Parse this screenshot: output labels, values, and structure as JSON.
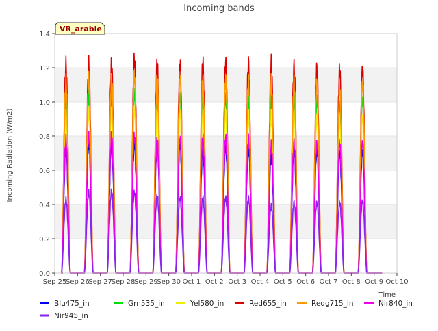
{
  "chart_data": {
    "type": "line",
    "title": "Incoming bands",
    "xlabel": "Time",
    "ylabel": "Incoming Radiation (W/m2)",
    "badge": "VR_arable",
    "ylim": [
      0,
      1.4
    ],
    "yticks": [
      0.0,
      0.2,
      0.4,
      0.6,
      0.8,
      1.0,
      1.2,
      1.4
    ],
    "ytick_labels": [
      "0.0",
      "0.2",
      "0.4",
      "0.6",
      "0.8",
      "1.0",
      "1.2",
      "1.4"
    ],
    "xlim_days": [
      0,
      15
    ],
    "xtick_labels": [
      "Sep 25",
      "Sep 26",
      "Sep 27",
      "Sep 28",
      "Sep 29",
      "Sep 30",
      "Oct 1",
      "Oct 2",
      "Oct 3",
      "Oct 4",
      "Oct 5",
      "Oct 6",
      "Oct 7",
      "Oct 8",
      "Oct 9",
      "Oct 10"
    ],
    "data_range_days": [
      0.35,
      14.35
    ],
    "day_count": 14,
    "daylight_start_frac": 0.3,
    "daylight_end_frac": 0.68,
    "grid_bands": true,
    "legend_position": "bottom",
    "series": [
      {
        "name": "Blu475_in",
        "color": "#0000ee",
        "daily_peaks": [
          0.73,
          0.76,
          0.76,
          0.75,
          0.76,
          0.75,
          0.72,
          0.74,
          0.74,
          0.68,
          0.72,
          0.72,
          0.7,
          0.71
        ]
      },
      {
        "name": "Grn535_in",
        "color": "#00dd00",
        "daily_peaks": [
          1.02,
          1.04,
          1.04,
          1.05,
          1.04,
          1.04,
          1.03,
          1.03,
          1.03,
          1.02,
          1.02,
          1.02,
          0.98,
          1.01
        ]
      },
      {
        "name": "Yel580_in",
        "color": "#eeee00",
        "daily_peaks": [
          0.92,
          0.94,
          0.95,
          0.95,
          0.94,
          0.94,
          0.93,
          0.93,
          0.93,
          0.92,
          0.92,
          0.91,
          0.88,
          0.91
        ]
      },
      {
        "name": "Red655_in",
        "color": "#dd0000",
        "daily_peaks": [
          1.22,
          1.23,
          1.23,
          1.25,
          1.23,
          1.23,
          1.23,
          1.23,
          1.23,
          1.23,
          1.21,
          1.2,
          1.19,
          1.19
        ]
      },
      {
        "name": "Redg715_in",
        "color": "#ff9900",
        "daily_peaks": [
          1.12,
          1.14,
          1.14,
          1.15,
          1.14,
          1.14,
          1.13,
          1.13,
          1.13,
          1.12,
          1.12,
          1.11,
          1.08,
          1.1
        ]
      },
      {
        "name": "Nir840_in",
        "color": "#ee00ee",
        "daily_peaks": [
          0.78,
          0.8,
          0.81,
          0.8,
          0.78,
          0.79,
          0.79,
          0.79,
          0.79,
          0.75,
          0.76,
          0.76,
          0.76,
          0.76
        ]
      },
      {
        "name": "Nir945_in",
        "color": "#8822ee",
        "daily_peaks": [
          0.43,
          0.47,
          0.48,
          0.47,
          0.45,
          0.44,
          0.44,
          0.44,
          0.44,
          0.39,
          0.41,
          0.41,
          0.41,
          0.42
        ]
      }
    ]
  }
}
